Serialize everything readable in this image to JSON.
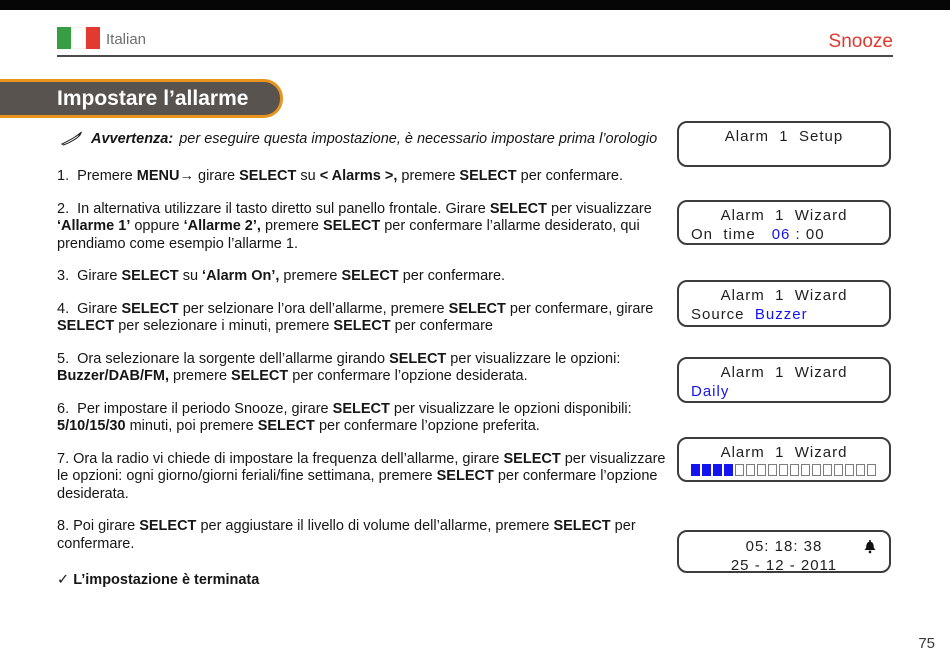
{
  "colors": {
    "accent_red": "#e0382e",
    "accent_blue": "#1414f0",
    "badge_orange": "#e8941e",
    "badge_gray": "#595350",
    "flag_green": "#389e46",
    "flag_red": "#e23a31"
  },
  "header": {
    "language_label": "Italian",
    "right_label": "Snooze"
  },
  "title_badge": {
    "label": "Impostare l’allarme"
  },
  "notice": {
    "label": "Avvertenza:",
    "text": "per eseguire questa impostazione, è necessario impostare prima l’orologio"
  },
  "steps": [
    [
      {
        "t": "1.  Premere ",
        "b": false
      },
      {
        "t": "MENU",
        "b": true
      },
      {
        "t": "→ girare ",
        "b": false
      },
      {
        "t": "SELECT",
        "b": true
      },
      {
        "t": " su ",
        "b": false
      },
      {
        "t": "< Alarms >,",
        "b": true
      },
      {
        "t": " premere ",
        "b": false
      },
      {
        "t": "SELECT",
        "b": true
      },
      {
        "t": " per confermare.",
        "b": false
      }
    ],
    [
      {
        "t": "2.  In alternativa utilizzare il tasto diretto sul panello frontale. Girare ",
        "b": false
      },
      {
        "t": "SELECT",
        "b": true
      },
      {
        "t": " per visualizzare ",
        "b": false
      },
      {
        "t": "‘Allarme 1’",
        "b": true
      },
      {
        "t": " oppure ",
        "b": false
      },
      {
        "t": "‘Allarme 2’,",
        "b": true
      },
      {
        "t": " premere ",
        "b": false
      },
      {
        "t": "SELECT",
        "b": true
      },
      {
        "t": " per confermare l’allarme desiderato, qui prendiamo come esempio l’allarme 1.",
        "b": false
      }
    ],
    [
      {
        "t": "3.  Girare ",
        "b": false
      },
      {
        "t": "SELECT",
        "b": true
      },
      {
        "t": " su ",
        "b": false
      },
      {
        "t": "‘Alarm On’,",
        "b": true
      },
      {
        "t": " premere ",
        "b": false
      },
      {
        "t": "SELECT",
        "b": true
      },
      {
        "t": " per confermare.",
        "b": false
      }
    ],
    [
      {
        "t": "4.  Girare ",
        "b": false
      },
      {
        "t": "SELECT",
        "b": true
      },
      {
        "t": " per selzionare l’ora dell’allarme, premere ",
        "b": false
      },
      {
        "t": "SELECT",
        "b": true
      },
      {
        "t": " per confermare, girare ",
        "b": false
      },
      {
        "t": "SELECT",
        "b": true
      },
      {
        "t": " per selezionare i minuti, premere ",
        "b": false
      },
      {
        "t": "SELECT",
        "b": true
      },
      {
        "t": " per confermare",
        "b": false
      }
    ],
    [
      {
        "t": "5.  Ora selezionare la sorgente dell’allarme girando ",
        "b": false
      },
      {
        "t": "SELECT",
        "b": true
      },
      {
        "t": " per visualizzare le opzioni: ",
        "b": false
      },
      {
        "t": "Buzzer/DAB/FM,",
        "b": true
      },
      {
        "t": " premere ",
        "b": false
      },
      {
        "t": "SELECT",
        "b": true
      },
      {
        "t": " per confermare l’opzione desiderata.",
        "b": false
      }
    ],
    [
      {
        "t": "6.  Per impostare il periodo Snooze, girare ",
        "b": false
      },
      {
        "t": "SELECT",
        "b": true
      },
      {
        "t": " per visualizzare le opzioni disponibili: ",
        "b": false
      },
      {
        "t": "5/10/15/30",
        "b": true
      },
      {
        "t": " minuti, poi premere ",
        "b": false
      },
      {
        "t": "SELECT",
        "b": true
      },
      {
        "t": " per confermare l’opzione preferita.",
        "b": false
      }
    ],
    [
      {
        "t": "7. Ora la radio vi chiede di impostare la frequenza dell’allarme, girare ",
        "b": false
      },
      {
        "t": "SELECT",
        "b": true
      },
      {
        "t": " per visualizzare le opzioni: ogni giorno/giorni feriali/fine settimana, premere ",
        "b": false
      },
      {
        "t": "SELECT",
        "b": true
      },
      {
        "t": " per confermare l’opzione desiderata.",
        "b": false
      }
    ],
    [
      {
        "t": "8. Poi girare ",
        "b": false
      },
      {
        "t": "SELECT",
        "b": true
      },
      {
        "t": " per aggiustare il livello di volume dell’allarme, premere ",
        "b": false
      },
      {
        "t": "SELECT",
        "b": true
      },
      {
        "t": " per confermare.",
        "b": false
      }
    ]
  ],
  "completion": {
    "check": "✓ ",
    "text": "L’impostazione è terminata"
  },
  "lcd": {
    "screens": {
      "setup": {
        "line1": "Alarm  1  Setup"
      },
      "on_time": {
        "line1": "Alarm  1  Wizard",
        "label": "On  time",
        "value": "06",
        "suffix": " : 00"
      },
      "source": {
        "line1": "Alarm  1  Wizard",
        "label": "Source  ",
        "value": "Buzzer"
      },
      "frequency": {
        "line1": "Alarm  1  Wizard",
        "value": "Daily"
      },
      "volume": {
        "line1": "Alarm  1  Wizard",
        "filled": 4,
        "total": 17
      },
      "clock": {
        "line1": "05: 18: 38",
        "line2": "25 - 12 - 2011"
      }
    }
  },
  "footer": {
    "page_number": "75"
  }
}
